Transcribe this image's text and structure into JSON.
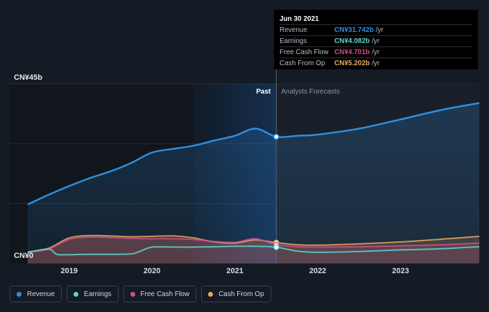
{
  "chart_data": {
    "type": "area",
    "y_axis_labels": {
      "top": "CN¥45b",
      "bottom": "CN¥0"
    },
    "ylim": [
      0,
      45
    ],
    "xlim": [
      2018.5,
      2023.95
    ],
    "x_ticks": [
      {
        "value": 2019,
        "label": "2019"
      },
      {
        "value": 2020,
        "label": "2020"
      },
      {
        "value": 2021,
        "label": "2021"
      },
      {
        "value": 2022,
        "label": "2022"
      },
      {
        "value": 2023,
        "label": "2023"
      }
    ],
    "past_label": "Past",
    "forecast_label": "Analysts Forecasts",
    "divider_x": 2021.5,
    "highlight_start_x": 2020.5,
    "series": [
      {
        "name": "Revenue",
        "color": "#2f8fe0",
        "fill": true,
        "x": [
          2018.5,
          2018.75,
          2019.0,
          2019.25,
          2019.5,
          2019.75,
          2020.0,
          2020.25,
          2020.5,
          2020.75,
          2021.0,
          2021.25,
          2021.5,
          2021.75,
          2022.0,
          2022.5,
          2023.0,
          2023.5,
          2023.95
        ],
        "y": [
          14.8,
          17.2,
          19.4,
          21.4,
          23.1,
          25.2,
          27.8,
          28.7,
          29.5,
          30.8,
          32.0,
          33.8,
          31.742,
          32.0,
          32.3,
          33.8,
          36.1,
          38.5,
          40.2
        ]
      },
      {
        "name": "Earnings",
        "color": "#5fd6c9",
        "fill": false,
        "x": [
          2018.5,
          2018.75,
          2018.85,
          2019.0,
          2019.25,
          2019.5,
          2019.75,
          2019.85,
          2020.0,
          2020.25,
          2020.5,
          2020.75,
          2021.0,
          2021.25,
          2021.5,
          2021.75,
          2022.0,
          2022.5,
          2023.0,
          2023.5,
          2023.95
        ],
        "y": [
          2.8,
          3.6,
          2.3,
          2.2,
          2.3,
          2.3,
          2.4,
          3.0,
          4.1,
          4.1,
          4.1,
          4.2,
          4.3,
          4.3,
          4.082,
          3.1,
          2.8,
          3.0,
          3.4,
          3.7,
          4.2
        ]
      },
      {
        "name": "Free Cash Flow",
        "color": "#d04f88",
        "fill": true,
        "x": [
          2018.5,
          2018.75,
          2019.0,
          2019.25,
          2019.5,
          2019.75,
          2020.0,
          2020.25,
          2020.5,
          2020.75,
          2021.0,
          2021.25,
          2021.5,
          2021.75,
          2022.0,
          2022.5,
          2023.0,
          2023.5,
          2023.95
        ],
        "y": [
          2.8,
          3.6,
          6.0,
          6.6,
          6.5,
          6.3,
          6.2,
          6.2,
          6.0,
          5.5,
          5.3,
          6.2,
          4.701,
          4.2,
          4.1,
          4.2,
          4.4,
          4.7,
          5.1
        ]
      },
      {
        "name": "Cash From Op",
        "color": "#e8a85a",
        "fill": true,
        "x": [
          2018.5,
          2018.75,
          2019.0,
          2019.25,
          2019.5,
          2019.75,
          2020.0,
          2020.25,
          2020.5,
          2020.75,
          2021.0,
          2021.25,
          2021.5,
          2021.75,
          2022.0,
          2022.5,
          2023.0,
          2023.5,
          2023.95
        ],
        "y": [
          2.9,
          3.8,
          6.4,
          7.0,
          6.9,
          6.7,
          6.8,
          6.9,
          6.4,
          5.4,
          5.1,
          5.9,
          5.202,
          4.7,
          4.6,
          4.9,
          5.4,
          6.1,
          6.8
        ]
      }
    ]
  },
  "tooltip": {
    "date": "Jun 30 2021",
    "unit": "/yr",
    "rows": [
      {
        "name": "Revenue",
        "value": "CN¥31.742b",
        "color": "#2f8fe0"
      },
      {
        "name": "Earnings",
        "value": "CN¥4.082b",
        "color": "#5fd6c9"
      },
      {
        "name": "Free Cash Flow",
        "value": "CN¥4.701b",
        "color": "#d04f88"
      },
      {
        "name": "Cash From Op",
        "value": "CN¥5.202b",
        "color": "#e8a85a"
      }
    ]
  },
  "legend": [
    {
      "label": "Revenue",
      "color": "#2f8fe0"
    },
    {
      "label": "Earnings",
      "color": "#5fd6c9"
    },
    {
      "label": "Free Cash Flow",
      "color": "#d04f88"
    },
    {
      "label": "Cash From Op",
      "color": "#e8a85a"
    }
  ]
}
